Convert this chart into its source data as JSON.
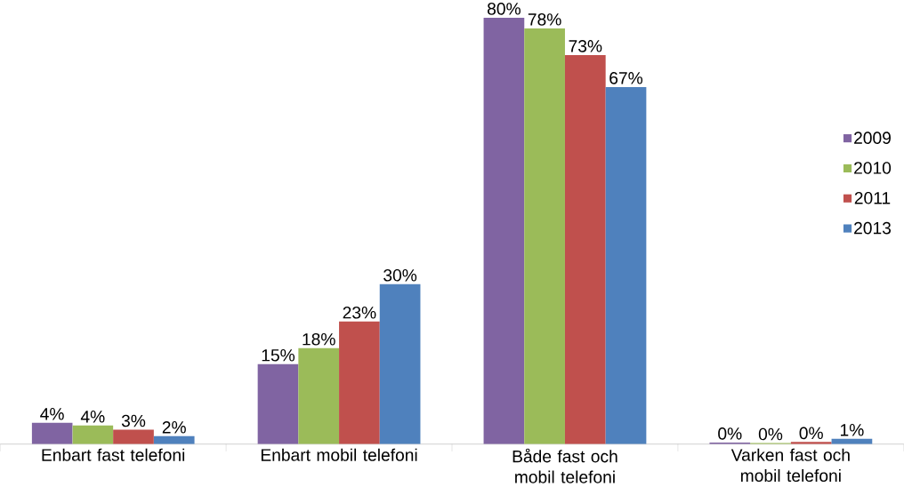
{
  "chart_data": {
    "type": "bar",
    "categories": [
      "Enbart fast telefoni",
      "Enbart mobil telefoni",
      "Både fast och mobil telefoni",
      "Varken fast och mobil telefoni"
    ],
    "series": [
      {
        "name": "2009",
        "color": "#8064a2",
        "values": [
          4,
          15,
          80,
          0.3
        ],
        "value_labels": [
          "4%",
          "15%",
          "80%",
          "0%"
        ]
      },
      {
        "name": "2010",
        "color": "#9bbb59",
        "values": [
          3.5,
          18,
          78,
          0.2
        ],
        "value_labels": [
          "4%",
          "18%",
          "78%",
          "0%"
        ]
      },
      {
        "name": "2011",
        "color": "#c0504d",
        "values": [
          2.7,
          23,
          73,
          0.4
        ],
        "value_labels": [
          "3%",
          "23%",
          "73%",
          "0%"
        ]
      },
      {
        "name": "2013",
        "color": "#4f81bd",
        "values": [
          1.5,
          30,
          67,
          1
        ],
        "value_labels": [
          "2%",
          "30%",
          "67%",
          "1%"
        ]
      }
    ],
    "legend": "right"
  }
}
